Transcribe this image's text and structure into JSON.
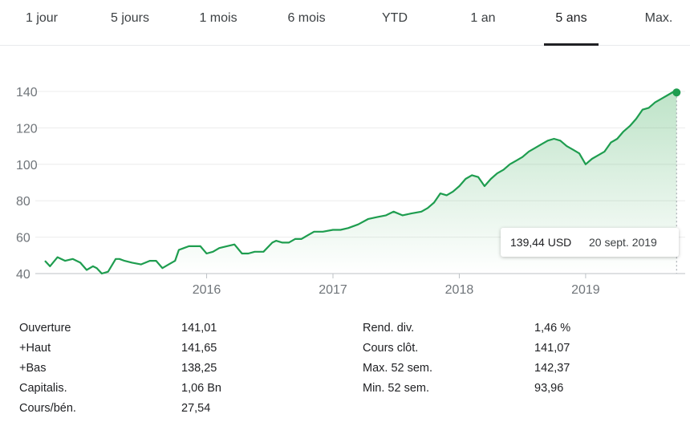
{
  "tabs": [
    {
      "label": "1 jour"
    },
    {
      "label": "5 jours"
    },
    {
      "label": "1 mois"
    },
    {
      "label": "6 mois"
    },
    {
      "label": "YTD"
    },
    {
      "label": "1 an"
    },
    {
      "label": "5 ans",
      "active": true
    },
    {
      "label": "Max."
    }
  ],
  "tooltip": {
    "price": "139,44 USD",
    "date": "20 sept. 2019"
  },
  "colors": {
    "line": "#1e9d4f",
    "fill": "#34a853",
    "grid": "#ececec"
  },
  "chart_data": {
    "type": "area",
    "title": "",
    "xlabel": "",
    "ylabel": "",
    "ylim": [
      40,
      140
    ],
    "y_ticks": [
      40,
      60,
      80,
      100,
      120,
      140
    ],
    "x_ticks": [
      {
        "label": "2016",
        "x": 2016.0
      },
      {
        "label": "2017",
        "x": 2017.0
      },
      {
        "label": "2018",
        "x": 2018.0
      },
      {
        "label": "2019",
        "x": 2019.0
      }
    ],
    "xlim": [
      2014.72,
      2019.75
    ],
    "grid": true,
    "series": [
      {
        "x": [
          2014.72,
          2014.76,
          2014.82,
          2014.88,
          2014.94,
          2015.0,
          2015.05,
          2015.1,
          2015.13,
          2015.17,
          2015.22,
          2015.28,
          2015.31,
          2015.35,
          2015.41,
          2015.48,
          2015.55,
          2015.6,
          2015.65,
          2015.7,
          2015.75,
          2015.78,
          2015.82,
          2015.86,
          2015.9,
          2015.95,
          2016.0,
          2016.05,
          2016.1,
          2016.16,
          2016.22,
          2016.28,
          2016.33,
          2016.38,
          2016.45,
          2016.52,
          2016.55,
          2016.6,
          2016.65,
          2016.7,
          2016.75,
          2016.8,
          2016.85,
          2016.92,
          2017.0,
          2017.06,
          2017.12,
          2017.2,
          2017.28,
          2017.35,
          2017.42,
          2017.48,
          2017.55,
          2017.62,
          2017.7,
          2017.75,
          2017.8,
          2017.85,
          2017.9,
          2017.95,
          2018.0,
          2018.05,
          2018.1,
          2018.15,
          2018.2,
          2018.25,
          2018.3,
          2018.35,
          2018.4,
          2018.45,
          2018.5,
          2018.55,
          2018.6,
          2018.65,
          2018.7,
          2018.75,
          2018.8,
          2018.85,
          2018.9,
          2018.95,
          2019.0,
          2019.05,
          2019.1,
          2019.15,
          2019.2,
          2019.25,
          2019.3,
          2019.35,
          2019.4,
          2019.45,
          2019.5,
          2019.55,
          2019.6,
          2019.65,
          2019.7,
          2019.72
        ],
        "values": [
          47,
          44,
          49,
          47,
          48,
          46,
          42,
          44,
          43,
          40,
          41,
          48,
          48,
          47,
          46,
          45,
          47,
          47,
          43,
          45,
          47,
          53,
          54,
          55,
          55,
          55,
          51,
          52,
          54,
          55,
          56,
          51,
          51,
          52,
          52,
          57,
          58,
          57,
          57,
          59,
          59,
          61,
          63,
          63,
          64,
          64,
          65,
          67,
          70,
          71,
          72,
          74,
          72,
          73,
          74,
          76,
          79,
          84,
          83,
          85,
          88,
          92,
          94,
          93,
          88,
          92,
          95,
          97,
          100,
          102,
          104,
          107,
          109,
          111,
          113,
          114,
          113,
          110,
          108,
          106,
          100,
          103,
          105,
          107,
          112,
          114,
          118,
          121,
          125,
          130,
          131,
          134,
          136,
          138,
          140,
          139.44
        ]
      }
    ]
  },
  "stats": {
    "left": [
      {
        "label": "Ouverture",
        "value": "141,01"
      },
      {
        "label": "+Haut",
        "value": "141,65"
      },
      {
        "label": "+Bas",
        "value": "138,25"
      },
      {
        "label": "Capitalis.",
        "value": "1,06 Bn"
      },
      {
        "label": "Cours/bén.",
        "value": "27,54"
      }
    ],
    "right": [
      {
        "label": "Rend. div.",
        "value": "1,46 %"
      },
      {
        "label": "Cours clôt.",
        "value": "141,07"
      },
      {
        "label": "Max. 52 sem.",
        "value": "142,37"
      },
      {
        "label": "Min. 52 sem.",
        "value": "93,96"
      }
    ]
  }
}
